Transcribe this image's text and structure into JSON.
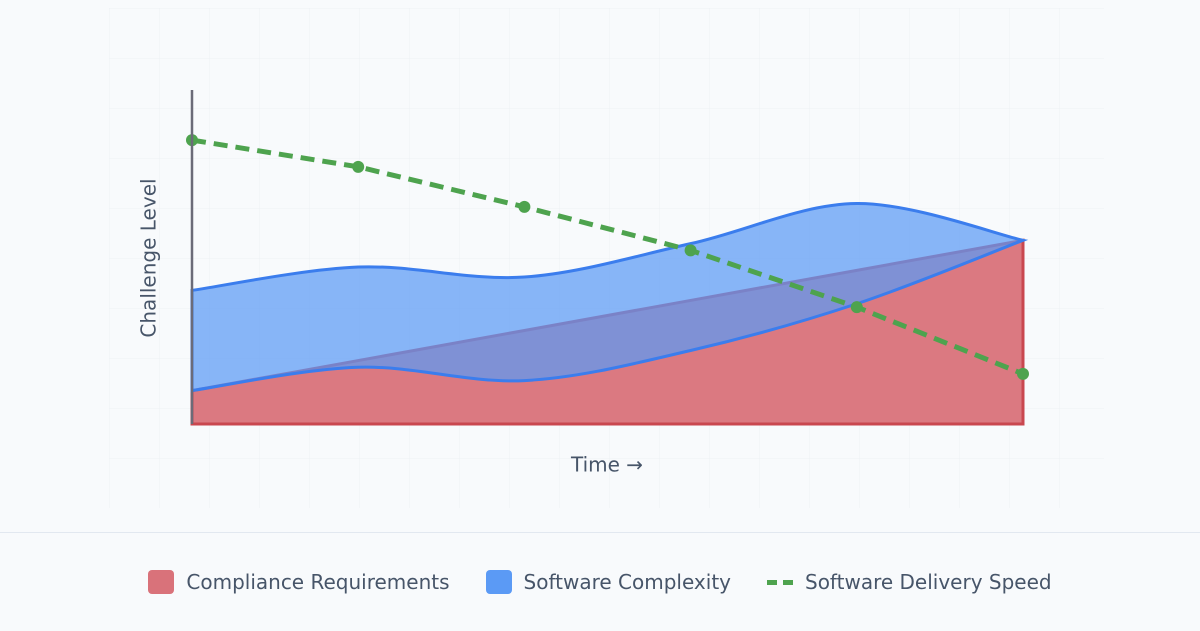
{
  "chart_data": {
    "type": "area",
    "y_label": "Challenge Level",
    "x_label": "Time →",
    "categories": [
      null,
      null,
      null,
      null,
      null,
      null
    ],
    "ylim": [
      0,
      100
    ],
    "series": [
      {
        "name": "Compliance Requirements",
        "kind": "area",
        "color": "#d9727a",
        "stroke": "#c9474f",
        "values": [
          10,
          19,
          28,
          37,
          46,
          55
        ]
      },
      {
        "name": "Software Complexity",
        "kind": "range",
        "smooth": true,
        "color": "#5b9af5",
        "stroke": "#3b7ded",
        "low": [
          10,
          17,
          13,
          22,
          36,
          55
        ],
        "values": [
          40,
          47,
          44,
          54,
          66,
          55
        ]
      },
      {
        "name": "Software Delivery Speed",
        "kind": "line",
        "dashed": true,
        "color": "#4ea34e",
        "values": [
          85,
          77,
          65,
          52,
          35,
          15
        ]
      }
    ]
  }
}
